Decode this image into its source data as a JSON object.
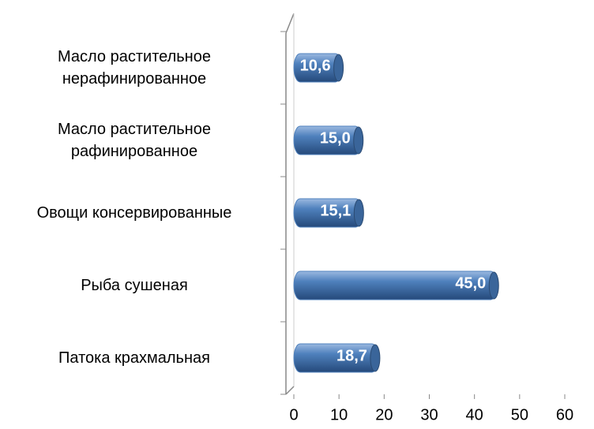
{
  "chart_data": {
    "type": "bar",
    "orientation": "horizontal",
    "categories": [
      "Масло растительное\nнерафинированное",
      "Масло растительное\nрафинированное",
      "Овощи консервированные",
      "Рыба сушеная",
      "Патока крахмальная"
    ],
    "values": [
      10.6,
      15.0,
      15.1,
      45.0,
      18.7
    ],
    "value_labels": [
      "10,6",
      "15,0",
      "15,1",
      "45,0",
      "18,7"
    ],
    "color": "#4f81bd",
    "xlim": [
      0,
      60
    ],
    "xticks": [
      0,
      10,
      20,
      30,
      40,
      50,
      60
    ]
  }
}
